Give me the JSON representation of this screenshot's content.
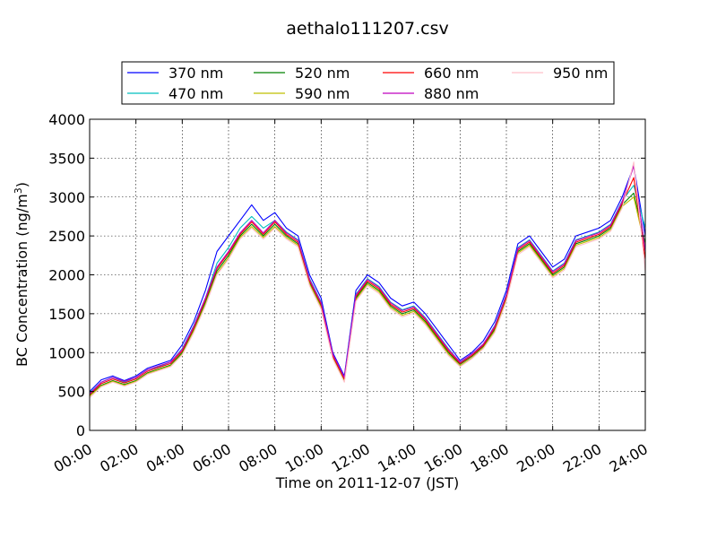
{
  "chart_data": {
    "type": "line",
    "title": "aethalo111207.csv",
    "xlabel": "Time on 2011-12-07 (JST)",
    "ylabel_main": "BC Concentration (ng/m",
    "ylabel_sup": "3",
    "ylabel_close": ")",
    "xlim": [
      0,
      24
    ],
    "ylim": [
      0,
      4000
    ],
    "x_unit": "hour",
    "x_ticks": [
      0,
      2,
      4,
      6,
      8,
      10,
      12,
      14,
      16,
      18,
      20,
      22,
      24
    ],
    "x_tick_labels": [
      "00:00",
      "02:00",
      "04:00",
      "06:00",
      "08:00",
      "10:00",
      "12:00",
      "14:00",
      "16:00",
      "18:00",
      "20:00",
      "22:00",
      "24:00"
    ],
    "y_ticks": [
      0,
      500,
      1000,
      1500,
      2000,
      2500,
      3000,
      3500,
      4000
    ],
    "y_tick_labels": [
      "0",
      "500",
      "1000",
      "1500",
      "2000",
      "2500",
      "3000",
      "3500",
      "4000"
    ],
    "grid": true,
    "legend_position": "top, above plot",
    "x": [
      0,
      0.5,
      1,
      1.5,
      2,
      2.5,
      3,
      3.5,
      4,
      4.5,
      5,
      5.5,
      6,
      6.5,
      7,
      7.5,
      8,
      8.5,
      9,
      9.5,
      10,
      10.5,
      11,
      11.5,
      12,
      12.5,
      13,
      13.5,
      14,
      14.5,
      15,
      15.5,
      16,
      16.5,
      17,
      17.5,
      18,
      18.5,
      19,
      19.5,
      20,
      20.5,
      21,
      21.5,
      22,
      22.5,
      23,
      23.5,
      24
    ],
    "series": [
      {
        "name": "370 nm",
        "color": "#0000ff",
        "values": [
          500,
          650,
          700,
          640,
          700,
          800,
          850,
          900,
          1100,
          1400,
          1800,
          2300,
          2500,
          2700,
          2900,
          2700,
          2800,
          2600,
          2500,
          2000,
          1700,
          1000,
          700,
          1800,
          2000,
          1900,
          1700,
          1600,
          1650,
          1500,
          1300,
          1100,
          900,
          1000,
          1150,
          1400,
          1800,
          2400,
          2500,
          2300,
          2100,
          2200,
          2500,
          2550,
          2600,
          2700,
          3000,
          3400,
          2500
        ]
      },
      {
        "name": "470 nm",
        "color": "#00bfbf",
        "values": [
          480,
          620,
          680,
          620,
          680,
          780,
          820,
          880,
          1050,
          1350,
          1700,
          2150,
          2350,
          2600,
          2750,
          2600,
          2700,
          2550,
          2450,
          1950,
          1650,
          980,
          680,
          1750,
          1950,
          1850,
          1650,
          1550,
          1600,
          1450,
          1250,
          1050,
          870,
          980,
          1100,
          1350,
          1750,
          2350,
          2450,
          2250,
          2050,
          2150,
          2450,
          2500,
          2550,
          2650,
          2950,
          3150,
          2600
        ]
      },
      {
        "name": "520 nm",
        "color": "#008000",
        "values": [
          450,
          580,
          640,
          590,
          640,
          740,
          790,
          840,
          1000,
          1300,
          1650,
          2050,
          2250,
          2500,
          2650,
          2500,
          2650,
          2500,
          2400,
          1900,
          1600,
          950,
          650,
          1700,
          1900,
          1800,
          1600,
          1500,
          1550,
          1400,
          1200,
          1000,
          850,
          950,
          1080,
          1300,
          1700,
          2300,
          2400,
          2200,
          2000,
          2100,
          2400,
          2450,
          2500,
          2600,
          2900,
          3050,
          2400
        ]
      },
      {
        "name": "590 nm",
        "color": "#bfbf00",
        "values": [
          440,
          570,
          630,
          580,
          630,
          730,
          780,
          830,
          980,
          1280,
          1620,
          2020,
          2220,
          2480,
          2620,
          2480,
          2620,
          2480,
          2380,
          1880,
          1580,
          930,
          630,
          1680,
          1880,
          1780,
          1580,
          1480,
          1530,
          1380,
          1180,
          980,
          830,
          930,
          1060,
          1280,
          1680,
          2280,
          2380,
          2180,
          1980,
          2080,
          2380,
          2430,
          2480,
          2580,
          2880,
          3000,
          2350
        ]
      },
      {
        "name": "660 nm",
        "color": "#ff0000",
        "values": [
          460,
          600,
          660,
          610,
          660,
          760,
          810,
          860,
          1020,
          1320,
          1680,
          2080,
          2280,
          2520,
          2680,
          2520,
          2680,
          2520,
          2420,
          1920,
          1620,
          960,
          660,
          1720,
          1920,
          1820,
          1620,
          1520,
          1570,
          1420,
          1220,
          1020,
          860,
          960,
          1090,
          1320,
          1720,
          2320,
          2420,
          2220,
          2020,
          2120,
          2420,
          2470,
          2520,
          2620,
          2920,
          3250,
          2200
        ]
      },
      {
        "name": "880 nm",
        "color": "#bf00bf",
        "values": [
          470,
          620,
          680,
          630,
          680,
          780,
          830,
          880,
          1040,
          1340,
          1700,
          2100,
          2300,
          2540,
          2700,
          2540,
          2700,
          2540,
          2440,
          1940,
          1640,
          980,
          680,
          1740,
          1940,
          1840,
          1640,
          1540,
          1590,
          1440,
          1240,
          1040,
          880,
          980,
          1110,
          1340,
          1740,
          2340,
          2440,
          2240,
          2040,
          2140,
          2440,
          2490,
          2540,
          2640,
          2940,
          3400,
          2300
        ]
      },
      {
        "name": "950 nm",
        "color": "#ffc0cb",
        "values": [
          420,
          560,
          620,
          570,
          620,
          720,
          770,
          820,
          970,
          1260,
          1600,
          2000,
          2200,
          2460,
          2600,
          2460,
          2600,
          2460,
          2360,
          1860,
          1560,
          920,
          620,
          1660,
          1860,
          1760,
          1560,
          1460,
          1510,
          1360,
          1160,
          960,
          820,
          920,
          1050,
          1260,
          1660,
          2260,
          2360,
          2160,
          1960,
          2060,
          2360,
          2410,
          2460,
          2560,
          2860,
          3450,
          2050
        ]
      }
    ]
  }
}
